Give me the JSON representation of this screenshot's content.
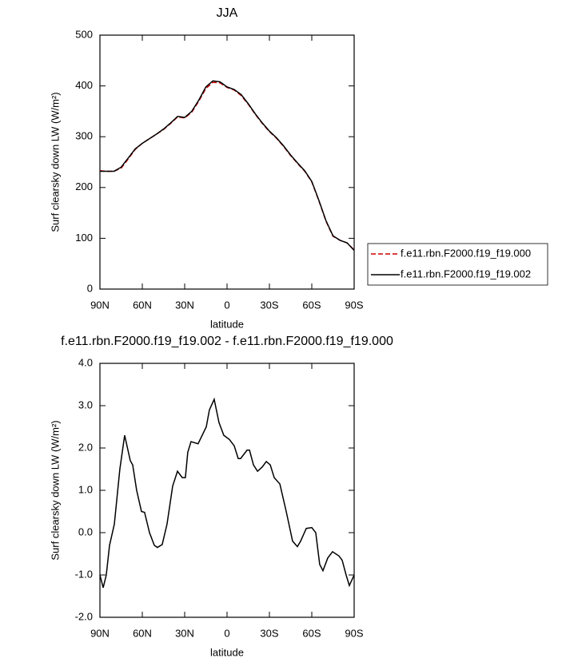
{
  "chart_data": [
    {
      "type": "line",
      "title": "JJA",
      "xlabel": "latitude",
      "ylabel": "Surf clearsky down LW (W/m²)",
      "x": [
        90,
        85,
        80,
        75,
        70,
        65,
        60,
        55,
        50,
        45,
        40,
        35,
        30,
        25,
        20,
        15,
        10,
        5,
        0,
        -5,
        -10,
        -15,
        -20,
        -25,
        -30,
        -35,
        -40,
        -45,
        -50,
        -55,
        -60,
        -65,
        -70,
        -75,
        -80,
        -85,
        -90
      ],
      "series": [
        {
          "name": "f.e11.rbn.F2000.f19_f19.000",
          "color": "#cc0000",
          "line_style": "dashed",
          "values": [
            233,
            232,
            232,
            238,
            256,
            275,
            287,
            296,
            305,
            314,
            326,
            339,
            337,
            348,
            370,
            395,
            407,
            406,
            397,
            392,
            381,
            364,
            344,
            326,
            310,
            297,
            281,
            263,
            247,
            232,
            211,
            174,
            134,
            104,
            96,
            91,
            77
          ]
        },
        {
          "name": "f.e11.rbn.F2000.f19_f19.002",
          "color": "#000000",
          "line_style": "solid",
          "values": [
            232,
            232,
            232,
            240,
            258,
            276,
            287,
            296,
            305,
            315,
            327,
            340,
            338,
            350,
            372,
            398,
            410,
            408,
            398,
            393,
            383,
            365,
            345,
            327,
            311,
            298,
            282,
            264,
            248,
            233,
            212,
            175,
            135,
            105,
            96,
            91,
            76
          ]
        }
      ],
      "xlim": [
        90,
        -90
      ],
      "xticks": [
        {
          "value": 90,
          "label": "90N"
        },
        {
          "value": 60,
          "label": "60N"
        },
        {
          "value": 30,
          "label": "30N"
        },
        0,
        {
          "value": -30,
          "label": "30S"
        },
        {
          "value": -60,
          "label": "60S"
        },
        {
          "value": -90,
          "label": "90S"
        }
      ],
      "ylim": [
        0,
        500
      ],
      "yticks": [
        0,
        100,
        200,
        300,
        400,
        500
      ],
      "legend": "outside-bottom-right"
    },
    {
      "type": "line",
      "title": "f.e11.rbn.F2000.f19_f19.002 - f.e11.rbn.F2000.f19_f19.000",
      "xlabel": "latitude",
      "ylabel": "Surf clearsky down LW (W/m²)",
      "x": [
        90,
        87.7,
        85.5,
        83.2,
        79.8,
        75.9,
        72.5,
        68.5,
        66.8,
        64,
        60.6,
        58.4,
        54.9,
        51.5,
        49.3,
        45.9,
        42.5,
        38.5,
        35.1,
        31.7,
        29.5,
        27.8,
        25.5,
        20.5,
        14.7,
        12.5,
        9.1,
        5.7,
        2.3,
        -1.7,
        -5.1,
        -7.9,
        -9.6,
        -14.2,
        -15.9,
        -18.7,
        -21.6,
        -24.9,
        -27.8,
        -30.6,
        -33.4,
        -37.4,
        -41.9,
        -46.4,
        -49.8,
        -52.1,
        -56.1,
        -60,
        -62.8,
        -65.6,
        -67.9,
        -71.3,
        -74.7,
        -79.2,
        -81.5,
        -84.3,
        -86.6,
        -90
      ],
      "values": [
        -1.0,
        -1.3,
        -1.0,
        -0.3,
        0.2,
        1.5,
        2.3,
        1.7,
        1.6,
        1.0,
        0.5,
        0.48,
        0.0,
        -0.3,
        -0.35,
        -0.28,
        0.2,
        1.1,
        1.45,
        1.3,
        1.3,
        1.9,
        2.15,
        2.1,
        2.5,
        2.9,
        3.15,
        2.6,
        2.3,
        2.2,
        2.05,
        1.75,
        1.75,
        1.95,
        1.95,
        1.6,
        1.45,
        1.55,
        1.68,
        1.6,
        1.3,
        1.15,
        0.5,
        -0.2,
        -0.33,
        -0.2,
        0.1,
        0.12,
        0.0,
        -0.75,
        -0.9,
        -0.6,
        -0.45,
        -0.55,
        -0.65,
        -1.0,
        -1.25,
        -1.0
      ],
      "color": "#000000",
      "xlim": [
        90,
        -90
      ],
      "xticks": [
        {
          "value": 90,
          "label": "90N"
        },
        {
          "value": 60,
          "label": "60N"
        },
        {
          "value": 30,
          "label": "30N"
        },
        0,
        {
          "value": -30,
          "label": "30S"
        },
        {
          "value": -60,
          "label": "60S"
        },
        {
          "value": -90,
          "label": "90S"
        }
      ],
      "ylim": [
        -2,
        4
      ],
      "yticks": [
        {
          "value": -2,
          "label": "-2.0"
        },
        {
          "value": -1,
          "label": "-1.0"
        },
        {
          "value": 0,
          "label": "0.0"
        },
        {
          "value": 1,
          "label": "1.0"
        },
        {
          "value": 2,
          "label": "2.0"
        },
        {
          "value": 3,
          "label": "3.0"
        },
        {
          "value": 4,
          "label": "4.0"
        }
      ]
    }
  ]
}
